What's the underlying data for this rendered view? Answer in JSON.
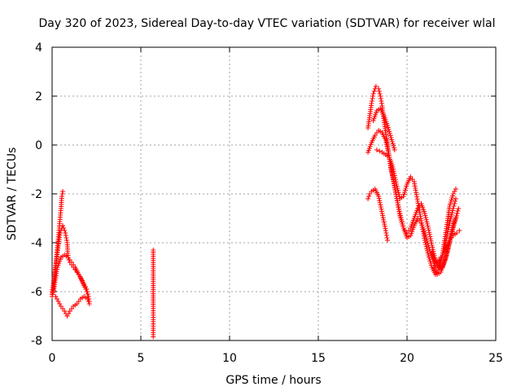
{
  "chart_data": {
    "type": "scatter",
    "title": "Day 320 of 2023, Sidereal Day-to-day VTEC variation (SDTVAR) for receiver wlal",
    "xlabel": "GPS time / hours",
    "ylabel": "SDTVAR / TECUs",
    "xlim": [
      0,
      25
    ],
    "ylim": [
      -8,
      4
    ],
    "xticks": [
      0,
      5,
      10,
      15,
      20,
      25
    ],
    "yticks": [
      -8,
      -6,
      -4,
      -2,
      0,
      2,
      4
    ],
    "xtick_labels": [
      "0",
      "5",
      "10",
      "15",
      "20",
      "25"
    ],
    "ytick_labels": [
      "-8",
      "-6",
      "-4",
      "-2",
      "0",
      "2",
      "4"
    ],
    "grid": true,
    "marker": "+",
    "color": "#ff0000",
    "series": [
      {
        "name": "SDTVAR",
        "tracks": [
          [
            [
              0.0,
              -6.1
            ],
            [
              0.1,
              -5.8
            ],
            [
              0.2,
              -5.0
            ],
            [
              0.3,
              -4.2
            ],
            [
              0.4,
              -3.4
            ],
            [
              0.5,
              -2.6
            ],
            [
              0.55,
              -2.1
            ],
            [
              0.6,
              -1.9
            ]
          ],
          [
            [
              0.0,
              -6.0
            ],
            [
              0.15,
              -5.3
            ],
            [
              0.3,
              -4.4
            ],
            [
              0.45,
              -3.6
            ],
            [
              0.6,
              -3.3
            ],
            [
              0.75,
              -3.6
            ],
            [
              0.85,
              -4.0
            ],
            [
              0.9,
              -4.6
            ],
            [
              1.0,
              -4.8
            ],
            [
              1.2,
              -5.0
            ],
            [
              1.4,
              -5.2
            ],
            [
              1.6,
              -5.4
            ],
            [
              1.8,
              -5.7
            ],
            [
              1.95,
              -5.9
            ],
            [
              2.05,
              -6.2
            ]
          ],
          [
            [
              0.0,
              -6.2
            ],
            [
              0.15,
              -5.7
            ],
            [
              0.3,
              -5.0
            ],
            [
              0.5,
              -4.6
            ],
            [
              0.7,
              -4.5
            ],
            [
              0.9,
              -4.6
            ],
            [
              1.1,
              -4.8
            ],
            [
              1.3,
              -5.0
            ],
            [
              1.5,
              -5.3
            ],
            [
              1.7,
              -5.6
            ],
            [
              1.9,
              -5.9
            ],
            [
              2.05,
              -6.2
            ],
            [
              2.1,
              -6.4
            ]
          ],
          [
            [
              0.2,
              -6.2
            ],
            [
              0.35,
              -6.4
            ],
            [
              0.5,
              -6.6
            ],
            [
              0.7,
              -6.8
            ],
            [
              0.85,
              -7.0
            ],
            [
              1.0,
              -6.8
            ],
            [
              1.2,
              -6.6
            ],
            [
              1.4,
              -6.5
            ],
            [
              1.6,
              -6.3
            ],
            [
              1.8,
              -6.2
            ],
            [
              2.0,
              -6.3
            ],
            [
              2.1,
              -6.5
            ]
          ],
          [
            [
              5.7,
              -4.3
            ],
            [
              5.7,
              -6.6
            ],
            [
              5.7,
              -7.5
            ],
            [
              5.7,
              -7.85
            ]
          ],
          [
            [
              17.8,
              -2.2
            ],
            [
              17.9,
              -2.0
            ],
            [
              18.0,
              -1.9
            ],
            [
              18.2,
              -1.8
            ],
            [
              18.4,
              -2.1
            ],
            [
              18.6,
              -2.8
            ],
            [
              18.8,
              -3.5
            ],
            [
              18.9,
              -3.9
            ]
          ],
          [
            [
              17.8,
              0.7
            ],
            [
              17.9,
              1.2
            ],
            [
              18.0,
              1.7
            ],
            [
              18.1,
              2.1
            ],
            [
              18.25,
              2.4
            ],
            [
              18.4,
              2.3
            ],
            [
              18.5,
              2.0
            ],
            [
              18.6,
              1.6
            ],
            [
              18.7,
              1.0
            ],
            [
              18.8,
              0.5
            ],
            [
              18.9,
              0.0
            ],
            [
              19.0,
              -0.5
            ],
            [
              19.1,
              -1.0
            ],
            [
              19.25,
              -1.5
            ],
            [
              19.4,
              -2.1
            ],
            [
              19.6,
              -2.8
            ],
            [
              19.8,
              -3.4
            ],
            [
              20.0,
              -3.8
            ],
            [
              20.2,
              -3.7
            ],
            [
              20.4,
              -3.3
            ],
            [
              20.6,
              -3.0
            ],
            [
              20.8,
              -3.2
            ],
            [
              21.0,
              -3.6
            ],
            [
              21.2,
              -4.1
            ],
            [
              21.4,
              -4.6
            ],
            [
              21.6,
              -5.0
            ],
            [
              21.8,
              -4.9
            ],
            [
              22.0,
              -4.5
            ],
            [
              22.2,
              -3.9
            ],
            [
              22.4,
              -3.2
            ],
            [
              22.6,
              -2.6
            ],
            [
              22.75,
              -2.2
            ]
          ],
          [
            [
              17.8,
              -0.3
            ],
            [
              18.0,
              0.1
            ],
            [
              18.2,
              0.4
            ],
            [
              18.4,
              0.6
            ],
            [
              18.6,
              0.5
            ],
            [
              18.8,
              0.2
            ],
            [
              19.0,
              -0.5
            ],
            [
              19.2,
              -1.3
            ],
            [
              19.4,
              -2.1
            ],
            [
              19.6,
              -2.9
            ],
            [
              19.8,
              -3.4
            ],
            [
              20.0,
              -3.6
            ],
            [
              20.2,
              -3.4
            ],
            [
              20.4,
              -3.0
            ],
            [
              20.6,
              -2.6
            ],
            [
              20.8,
              -2.4
            ],
            [
              21.0,
              -2.8
            ],
            [
              21.2,
              -3.4
            ],
            [
              21.4,
              -4.1
            ],
            [
              21.6,
              -4.7
            ],
            [
              21.8,
              -5.1
            ],
            [
              22.0,
              -5.0
            ],
            [
              22.2,
              -4.6
            ],
            [
              22.4,
              -3.9
            ],
            [
              22.6,
              -3.3
            ],
            [
              22.8,
              -2.9
            ],
            [
              22.9,
              -2.6
            ]
          ],
          [
            [
              18.3,
              -0.2
            ],
            [
              18.6,
              -0.3
            ],
            [
              19.0,
              -0.5
            ],
            [
              19.2,
              -0.9
            ],
            [
              19.4,
              -1.6
            ],
            [
              19.6,
              -2.2
            ],
            [
              19.8,
              -2.1
            ],
            [
              20.0,
              -1.6
            ],
            [
              20.2,
              -1.3
            ],
            [
              20.4,
              -1.5
            ],
            [
              20.6,
              -2.3
            ],
            [
              20.8,
              -3.1
            ],
            [
              21.0,
              -3.9
            ],
            [
              21.2,
              -4.5
            ],
            [
              21.4,
              -5.0
            ],
            [
              21.6,
              -5.3
            ],
            [
              21.8,
              -5.1
            ],
            [
              22.0,
              -4.5
            ],
            [
              22.2,
              -3.5
            ],
            [
              22.4,
              -2.5
            ],
            [
              22.6,
              -2.0
            ],
            [
              22.75,
              -1.8
            ]
          ],
          [
            [
              21.4,
              -4.4
            ],
            [
              21.6,
              -4.8
            ],
            [
              21.8,
              -4.7
            ],
            [
              22.0,
              -4.5
            ],
            [
              22.2,
              -4.2
            ],
            [
              22.4,
              -3.9
            ],
            [
              22.6,
              -3.7
            ],
            [
              22.8,
              -3.6
            ],
            [
              22.95,
              -3.5
            ]
          ],
          [
            [
              18.1,
              1.0
            ],
            [
              18.3,
              1.4
            ],
            [
              18.5,
              1.5
            ],
            [
              18.7,
              1.2
            ],
            [
              18.9,
              0.8
            ],
            [
              19.1,
              0.3
            ],
            [
              19.3,
              -0.2
            ]
          ],
          [
            [
              21.5,
              -5.0
            ],
            [
              21.7,
              -5.3
            ],
            [
              21.9,
              -5.2
            ],
            [
              22.1,
              -4.8
            ],
            [
              22.3,
              -4.3
            ],
            [
              22.5,
              -3.7
            ],
            [
              22.7,
              -3.1
            ],
            [
              22.85,
              -2.7
            ]
          ]
        ]
      }
    ]
  }
}
